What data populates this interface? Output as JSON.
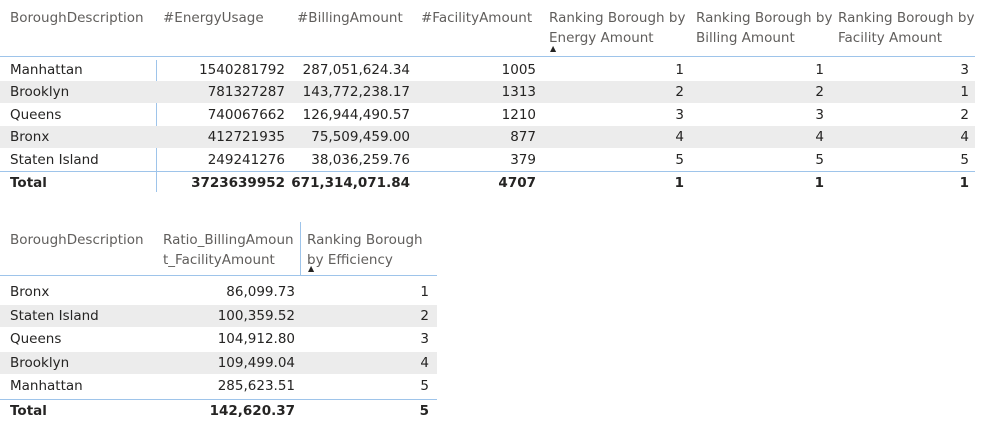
{
  "table1": {
    "headers": {
      "borough": "BoroughDescription",
      "energy": "#EnergyUsage",
      "billing": "#BillingAmount",
      "facility": "#FacilityAmount",
      "rank_energy": "Ranking Borough by Energy Amount",
      "rank_billing": "Ranking Borough by Billing Amount",
      "rank_facility": "Ranking Borough by Facility Amount"
    },
    "rows": [
      {
        "borough": "Manhattan",
        "energy": "1540281792",
        "billing": "287,051,624.34",
        "facility": "1005",
        "rank_energy": "1",
        "rank_billing": "1",
        "rank_facility": "3"
      },
      {
        "borough": "Brooklyn",
        "energy": "781327287",
        "billing": "143,772,238.17",
        "facility": "1313",
        "rank_energy": "2",
        "rank_billing": "2",
        "rank_facility": "1"
      },
      {
        "borough": "Queens",
        "energy": "740067662",
        "billing": "126,944,490.57",
        "facility": "1210",
        "rank_energy": "3",
        "rank_billing": "3",
        "rank_facility": "2"
      },
      {
        "borough": "Bronx",
        "energy": "412721935",
        "billing": "75,509,459.00",
        "facility": "877",
        "rank_energy": "4",
        "rank_billing": "4",
        "rank_facility": "4"
      },
      {
        "borough": "Staten Island",
        "energy": "249241276",
        "billing": "38,036,259.76",
        "facility": "379",
        "rank_energy": "5",
        "rank_billing": "5",
        "rank_facility": "5"
      }
    ],
    "total": {
      "borough": "Total",
      "energy": "3723639952",
      "billing": "671,314,071.84",
      "facility": "4707",
      "rank_energy": "1",
      "rank_billing": "1",
      "rank_facility": "1"
    }
  },
  "table2": {
    "headers": {
      "borough": "BoroughDescription",
      "ratio": "Ratio_BillingAmount_FacilityAmount",
      "rank_eff": "Ranking Borough by Efficiency"
    },
    "rows": [
      {
        "borough": "Bronx",
        "ratio": "86,099.73",
        "rank_eff": "1"
      },
      {
        "borough": "Staten Island",
        "ratio": "100,359.52",
        "rank_eff": "2"
      },
      {
        "borough": "Queens",
        "ratio": "104,912.80",
        "rank_eff": "3"
      },
      {
        "borough": "Brooklyn",
        "ratio": "109,499.04",
        "rank_eff": "4"
      },
      {
        "borough": "Manhattan",
        "ratio": "285,623.51",
        "rank_eff": "5"
      }
    ],
    "total": {
      "borough": "Total",
      "ratio": "142,620.37",
      "rank_eff": "5"
    }
  },
  "colors": {
    "accent_line": "#9ec4ea",
    "row_alt": "#ececec",
    "header_text": "#605e5c",
    "text": "#252423"
  },
  "icons": {
    "sort": "sort-ascending-triangle-icon"
  }
}
